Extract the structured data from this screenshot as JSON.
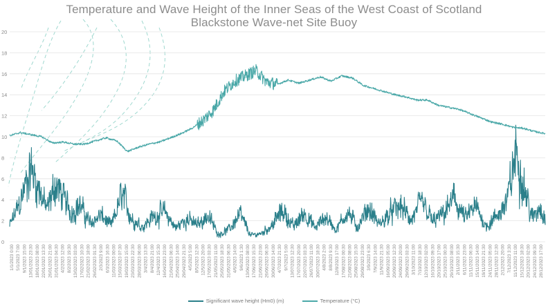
{
  "chart_data": {
    "type": "line",
    "title": "Temperature and Wave Height of the Inner Seas of the West Coast of Scotland",
    "subtitle": "Blackstone Wave-net Site Buoy",
    "ylim": [
      0,
      20
    ],
    "y_ticks": [
      0,
      2,
      4,
      6,
      8,
      10,
      12,
      14,
      16,
      18,
      20
    ],
    "x_tick_labels": [
      "1/1/2023 0:00",
      "5/1/2023 7:00",
      "9/1/2023 15:00",
      "13/01/2023 23:30",
      "18/01/2023 08:00",
      "22/01/2023 13:30",
      "26/01/2023 21:00",
      "31/01/2023 04:30",
      "4/2/2023 12:00",
      "8/2/2023 19:30",
      "13/02/2023 03:00",
      "17/02/2023 10:30",
      "21/02/2023 18:00",
      "26/02/2023 01:30",
      "2/3/2023 9:00",
      "6/3/2023 16:30",
      "11/03/2023 00:00",
      "15/03/2023 07:30",
      "19/03/2023 15:00",
      "23/03/2023 22:30",
      "28/03/2023 06:00",
      "3/4/2023 13:30",
      "8/4/2023 21:00",
      "12/4/2023 15:30",
      "16/04/2023 23:00",
      "21/04/2023 06:30",
      "25/04/2023 14:00",
      "29/04/2023 21:30",
      "4/5/2023 5:00",
      "8/5/2023 12:30",
      "12/5/2023 20:00",
      "17/05/2023 03:30",
      "21/05/2023 11:00",
      "25/05/2023 18:30",
      "31/05/2023 06:30",
      "4/6/2023 14:00",
      "9/6/2023 1:30",
      "13/06/2023 08:00",
      "17/06/2023 15:30",
      "21/06/2023 23:00",
      "26/06/2023 06:30",
      "30/06/2023 14:00",
      "4/7/2023 21:30",
      "9/7/2023 5:00",
      "13/07/2023 12:30",
      "17/07/2023 20:00",
      "22/07/2023 03:30",
      "26/07/2023 11:00",
      "30/07/2023 18:30",
      "4/8/2023 2:00",
      "8/8/2023 9:30",
      "12/8/2023 17:00",
      "17/08/2023 00:30",
      "21/08/2023 08:00",
      "25/08/2023 15:30",
      "29/08/2023 23:00",
      "3/9/2023 6:30",
      "7/9/2023 14:00",
      "11/9/2023 21:30",
      "16/09/2023 05:00",
      "20/09/2023 12:30",
      "24/09/2023 20:00",
      "29/09/2023 03:30",
      "3/10/2023 11:00",
      "7/10/2023 18:30",
      "12/10/2023 02:00",
      "16/10/2023 09:30",
      "20/10/2023 17:00",
      "25/10/2023 00:30",
      "29/10/2023 08:00",
      "2/11/2023 15:30",
      "6/11/2023 23:00",
      "11/11/2023 06:30",
      "15/11/2023 14:00",
      "19/11/2023 21:30",
      "24/11/2023 05:00",
      "28/11/2023 12:30",
      "2/12/2023 20:00",
      "7/12/2023 3:30",
      "11/12/2023 11:00",
      "15/12/2023 18:30",
      "20/12/2023 02:00",
      "24/12/2023 09:30",
      "28/12/2023 17:00"
    ],
    "legend_position": "bottom",
    "grid": "horizontal",
    "series": [
      {
        "name": "Significant wave height (Hm0) (m)",
        "color": "#2a7f8a",
        "x": [
          0,
          0.02,
          0.04,
          0.055,
          0.07,
          0.085,
          0.1,
          0.115,
          0.13,
          0.15,
          0.17,
          0.19,
          0.21,
          0.23,
          0.25,
          0.27,
          0.29,
          0.31,
          0.33,
          0.35,
          0.37,
          0.39,
          0.41,
          0.43,
          0.45,
          0.47,
          0.49,
          0.51,
          0.53,
          0.55,
          0.57,
          0.59,
          0.61,
          0.63,
          0.65,
          0.67,
          0.69,
          0.71,
          0.73,
          0.75,
          0.77,
          0.79,
          0.81,
          0.83,
          0.85,
          0.87,
          0.89,
          0.91,
          0.93,
          0.945,
          0.96,
          0.975,
          0.99,
          1.0
        ],
        "y": [
          1.5,
          3.8,
          7.0,
          5.0,
          3.0,
          5.5,
          4.2,
          2.8,
          3.5,
          1.8,
          2.5,
          1.5,
          4.5,
          2.0,
          1.5,
          2.5,
          2.8,
          1.3,
          2.2,
          1.6,
          2.5,
          0.7,
          1.2,
          2.6,
          0.6,
          0.8,
          1.6,
          3.0,
          1.4,
          2.8,
          1.3,
          2.4,
          1.1,
          2.9,
          1.4,
          3.2,
          1.6,
          2.7,
          3.4,
          2.0,
          3.8,
          1.9,
          2.6,
          4.1,
          2.2,
          3.3,
          1.5,
          2.4,
          4.0,
          8.6,
          5.5,
          2.2,
          3.4,
          2.4
        ]
      },
      {
        "name": "Temperature (°C)",
        "color": "#4aa8a8",
        "x": [
          0,
          0.02,
          0.04,
          0.06,
          0.08,
          0.1,
          0.12,
          0.14,
          0.16,
          0.18,
          0.2,
          0.22,
          0.24,
          0.26,
          0.28,
          0.3,
          0.32,
          0.34,
          0.36,
          0.38,
          0.4,
          0.42,
          0.44,
          0.46,
          0.48,
          0.5,
          0.52,
          0.54,
          0.56,
          0.58,
          0.6,
          0.62,
          0.64,
          0.66,
          0.68,
          0.7,
          0.72,
          0.74,
          0.76,
          0.78,
          0.8,
          0.82,
          0.84,
          0.86,
          0.88,
          0.9,
          0.92,
          0.94,
          0.96,
          0.98,
          1.0
        ],
        "y": [
          10.1,
          10.4,
          10.2,
          10.0,
          9.4,
          9.5,
          9.3,
          9.3,
          9.6,
          9.9,
          9.6,
          8.6,
          9.0,
          9.3,
          9.5,
          9.9,
          10.3,
          10.8,
          11.5,
          12.5,
          14.3,
          15.3,
          15.8,
          16.3,
          15.2,
          15.0,
          15.4,
          15.1,
          15.4,
          15.7,
          15.3,
          15.8,
          15.6,
          14.9,
          14.6,
          14.3,
          14.0,
          13.8,
          13.5,
          13.5,
          13.0,
          12.8,
          12.6,
          12.2,
          11.8,
          11.4,
          11.2,
          10.9,
          10.8,
          10.5,
          10.3
        ]
      }
    ]
  }
}
